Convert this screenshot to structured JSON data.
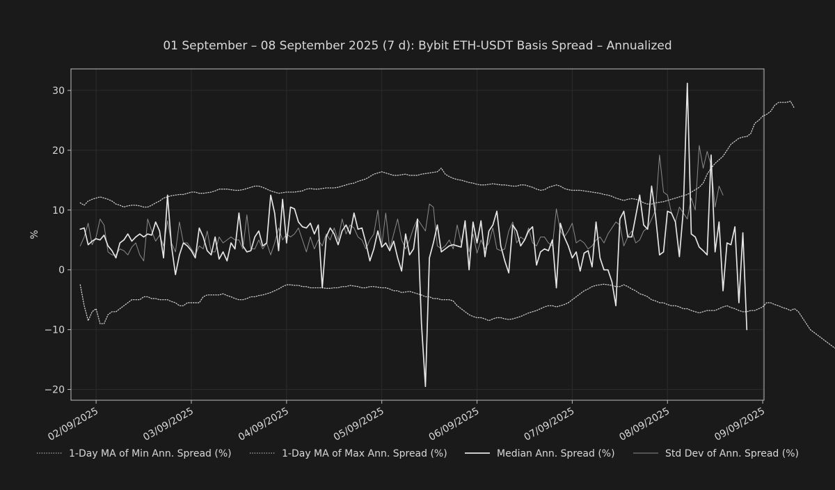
{
  "colors": {
    "background": "#1a1a1a",
    "text": "#d8d8d8",
    "axis": "#bfbfbf",
    "grid": "#2c2c2c",
    "min_ma": "#d0d0d0",
    "max_ma": "#d0d0d0",
    "median": "#e6e6e6",
    "std": "#8c8c8c"
  },
  "chart_data": {
    "type": "line",
    "title": "01 September – 08 September 2025 (7 d): Bybit ETH-USDT Basis Spread – Annualized",
    "xlabel": "",
    "ylabel": "%",
    "x_start": "2025-09-01T20:00",
    "x_step_hours": 1,
    "xlim": [
      "2025-09-01T17:40",
      "2025-09-09T00:20"
    ],
    "ylim": [
      -21.8,
      33.6
    ],
    "x_ticks": [
      "02/09/2025",
      "03/09/2025",
      "04/09/2025",
      "05/09/2025",
      "06/09/2025",
      "07/09/2025",
      "08/09/2025",
      "09/09/2025"
    ],
    "y_ticks": [
      -20,
      -10,
      0,
      10,
      20,
      30
    ],
    "y_tick_labels": [
      "−20",
      "−10",
      "0",
      "10",
      "20",
      "30"
    ],
    "grid": true,
    "legend_position": "bottom",
    "series": [
      {
        "name": "1-Day MA of Min Ann. Spread (%)",
        "style": "dotted",
        "values": [
          -2.5,
          -6.0,
          -8.5,
          -7.0,
          -6.5,
          -9.0,
          -9.0,
          -7.5,
          -7.0,
          -7.0,
          -6.5,
          -6.0,
          -5.5,
          -5.0,
          -5.0,
          -5.0,
          -4.5,
          -4.5,
          -4.8,
          -4.8,
          -5.0,
          -5.0,
          -5.0,
          -5.3,
          -5.5,
          -6.0,
          -6.0,
          -5.5,
          -5.5,
          -5.5,
          -5.5,
          -4.5,
          -4.2,
          -4.2,
          -4.2,
          -4.2,
          -4.0,
          -4.3,
          -4.5,
          -4.8,
          -5.0,
          -5.0,
          -4.8,
          -4.5,
          -4.5,
          -4.3,
          -4.2,
          -4.0,
          -3.8,
          -3.5,
          -3.2,
          -2.8,
          -2.5,
          -2.5,
          -2.6,
          -2.6,
          -2.8,
          -2.8,
          -3.0,
          -3.0,
          -3.0,
          -3.0,
          -3.1,
          -3.1,
          -3.0,
          -3.0,
          -2.8,
          -2.8,
          -2.6,
          -2.7,
          -2.8,
          -3.0,
          -3.0,
          -2.8,
          -2.8,
          -2.9,
          -3.0,
          -3.0,
          -3.2,
          -3.5,
          -3.5,
          -3.8,
          -3.7,
          -3.6,
          -3.8,
          -4.0,
          -4.2,
          -4.5,
          -4.5,
          -4.8,
          -4.8,
          -5.0,
          -5.0,
          -5.0,
          -5.2,
          -6.0,
          -6.5,
          -7.0,
          -7.5,
          -7.8,
          -8.0,
          -8.0,
          -8.2,
          -8.5,
          -8.2,
          -8.0,
          -8.0,
          -8.2,
          -8.3,
          -8.2,
          -8.0,
          -7.8,
          -7.5,
          -7.2,
          -7.0,
          -6.8,
          -6.5,
          -6.2,
          -6.0,
          -6.0,
          -6.2,
          -6.0,
          -5.8,
          -5.5,
          -5.0,
          -4.5,
          -4.0,
          -3.5,
          -3.2,
          -2.8,
          -2.6,
          -2.5,
          -2.4,
          -2.5,
          -2.6,
          -2.8,
          -2.8,
          -2.5,
          -2.8,
          -3.2,
          -3.5,
          -4.0,
          -4.2,
          -4.5,
          -5.0,
          -5.2,
          -5.5,
          -5.5,
          -5.8,
          -6.0,
          -6.0,
          -6.2,
          -6.5,
          -6.5,
          -6.8,
          -7.0,
          -7.2,
          -7.0,
          -6.8,
          -6.8,
          -6.8,
          -6.5,
          -6.2,
          -6.0,
          -6.3,
          -6.5,
          -6.8,
          -7.0,
          -7.0,
          -6.8,
          -6.8,
          -6.5,
          -6.2,
          -5.5,
          -5.5,
          -5.8,
          -6.0,
          -6.3,
          -6.5,
          -6.8,
          -6.5,
          -7.0,
          -8.0,
          -9.0,
          -10.0,
          -10.5,
          -11.0,
          -11.5,
          -12.0,
          -12.5,
          -13.0,
          -13.4
        ]
      },
      {
        "name": "1-Day MA of Max Ann. Spread (%)",
        "style": "dotted",
        "values": [
          11.2,
          10.8,
          11.5,
          11.8,
          12.0,
          12.2,
          12.0,
          11.8,
          11.5,
          11.0,
          10.8,
          10.5,
          10.7,
          10.8,
          10.8,
          10.7,
          10.5,
          10.5,
          10.8,
          11.2,
          11.5,
          12.0,
          12.2,
          12.4,
          12.5,
          12.6,
          12.6,
          12.8,
          13.0,
          13.0,
          12.8,
          12.8,
          12.9,
          13.0,
          13.2,
          13.5,
          13.5,
          13.5,
          13.4,
          13.3,
          13.3,
          13.4,
          13.6,
          13.8,
          14.0,
          14.0,
          13.8,
          13.5,
          13.2,
          13.0,
          12.8,
          12.9,
          13.0,
          13.0,
          13.0,
          13.1,
          13.2,
          13.5,
          13.6,
          13.5,
          13.5,
          13.6,
          13.7,
          13.7,
          13.7,
          13.8,
          14.0,
          14.2,
          14.4,
          14.5,
          14.8,
          15.0,
          15.2,
          15.6,
          16.0,
          16.2,
          16.4,
          16.2,
          16.0,
          15.8,
          15.8,
          15.9,
          16.0,
          15.8,
          15.8,
          15.8,
          16.0,
          16.1,
          16.2,
          16.3,
          16.4,
          17.0,
          16.0,
          15.6,
          15.3,
          15.1,
          15.0,
          14.8,
          14.6,
          14.5,
          14.3,
          14.2,
          14.2,
          14.3,
          14.4,
          14.3,
          14.2,
          14.2,
          14.1,
          14.0,
          14.0,
          14.2,
          14.2,
          14.0,
          13.8,
          13.5,
          13.3,
          13.4,
          13.8,
          14.0,
          14.2,
          14.0,
          13.6,
          13.4,
          13.3,
          13.3,
          13.3,
          13.2,
          13.1,
          13.0,
          12.9,
          12.8,
          12.6,
          12.5,
          12.3,
          12.0,
          11.8,
          11.6,
          11.8,
          11.9,
          11.8,
          11.6,
          11.2,
          11.0,
          11.0,
          11.2,
          11.3,
          11.4,
          11.6,
          11.8,
          12.0,
          12.2,
          12.4,
          12.6,
          13.0,
          13.4,
          13.8,
          14.5,
          16.0,
          17.0,
          17.8,
          18.4,
          19.0,
          20.0,
          21.0,
          21.5,
          22.0,
          22.2,
          22.3,
          22.8,
          24.5,
          25.0,
          25.7,
          26.0,
          26.5,
          27.5,
          28.0,
          28.0,
          28.0,
          28.2,
          27.0
        ]
      },
      {
        "name": "Median Ann. Spread (%)",
        "style": "solid",
        "values": [
          6.8,
          7.0,
          4.2,
          4.8,
          5.2,
          5.0,
          5.8,
          4.0,
          3.2,
          2.0,
          4.5,
          5.0,
          6.0,
          4.8,
          5.5,
          6.0,
          5.5,
          6.0,
          5.8,
          8.0,
          6.5,
          2.0,
          12.5,
          4.0,
          -0.8,
          2.5,
          4.5,
          4.0,
          3.2,
          2.0,
          7.0,
          5.5,
          3.2,
          2.5,
          5.5,
          1.8,
          3.0,
          1.5,
          4.5,
          3.5,
          9.5,
          4.0,
          3.0,
          3.2,
          5.5,
          6.5,
          4.0,
          4.5,
          12.5,
          9.5,
          3.2,
          11.8,
          4.5,
          10.5,
          10.2,
          8.0,
          7.2,
          7.0,
          7.8,
          6.0,
          7.5,
          -3.0,
          5.5,
          7.0,
          6.0,
          4.2,
          6.5,
          7.5,
          6.0,
          9.5,
          6.8,
          7.0,
          4.5,
          1.5,
          3.5,
          6.5,
          3.8,
          4.5,
          3.2,
          4.8,
          2.0,
          -0.2,
          6.0,
          2.5,
          3.5,
          8.5,
          -9.0,
          -19.5,
          2.0,
          4.5,
          7.5,
          3.0,
          3.5,
          4.0,
          4.2,
          4.0,
          3.8,
          8.2,
          0.0,
          8.0,
          4.5,
          8.2,
          2.2,
          6.5,
          7.5,
          9.8,
          4.0,
          1.5,
          -0.5,
          7.5,
          6.5,
          4.0,
          5.0,
          6.5,
          7.2,
          0.8,
          3.0,
          3.5,
          3.2,
          5.0,
          -3.0,
          7.8,
          5.5,
          4.0,
          2.0,
          3.0,
          -0.2,
          2.8,
          3.2,
          0.5,
          8.0,
          2.0,
          0.0,
          0.0,
          -2.0,
          -6.0,
          8.5,
          9.8,
          5.5,
          5.5,
          9.0,
          12.5,
          7.5,
          6.8,
          14.0,
          9.0,
          2.5,
          3.0,
          9.8,
          9.5,
          8.0,
          2.2,
          10.0,
          31.2,
          6.0,
          5.5,
          3.8,
          3.2,
          2.5,
          19.2,
          3.0,
          8.0,
          -3.5,
          4.5,
          4.2,
          7.2,
          -5.5,
          6.2,
          -10.0
        ]
      },
      {
        "name": "Std Dev of Ann. Spread (%)",
        "style": "solid",
        "values": [
          4.0,
          5.5,
          7.8,
          4.2,
          5.5,
          8.5,
          7.5,
          3.0,
          2.5,
          2.5,
          3.5,
          3.2,
          2.5,
          3.8,
          4.5,
          2.5,
          1.5,
          8.5,
          6.5,
          4.8,
          5.8,
          4.0,
          8.2,
          4.5,
          3.0,
          8.0,
          4.5,
          4.5,
          3.5,
          2.5,
          4.0,
          3.5,
          6.5,
          3.0,
          3.0,
          5.5,
          4.5,
          5.0,
          5.5,
          5.0,
          5.0,
          3.5,
          9.2,
          3.5,
          3.5,
          5.0,
          3.5,
          4.5,
          2.5,
          4.5,
          7.0,
          5.0,
          6.0,
          5.5,
          6.0,
          7.0,
          5.0,
          3.0,
          5.5,
          3.5,
          5.0,
          4.0,
          6.0,
          5.0,
          7.0,
          5.0,
          8.5,
          6.0,
          7.5,
          7.0,
          5.5,
          5.0,
          3.5,
          5.0,
          6.0,
          10.0,
          4.0,
          9.5,
          3.5,
          6.0,
          8.5,
          5.0,
          3.5,
          5.0,
          7.0,
          8.5,
          7.5,
          6.5,
          11.0,
          10.5,
          4.0,
          3.5,
          4.0,
          5.0,
          3.5,
          7.5,
          4.5,
          8.0,
          3.0,
          6.0,
          2.8,
          5.0,
          3.5,
          4.5,
          7.0,
          3.5,
          3.2,
          3.5,
          6.5,
          8.0,
          4.5,
          5.5,
          5.0,
          7.0,
          4.5,
          4.0,
          5.5,
          5.5,
          4.5,
          4.0,
          10.2,
          6.5,
          5.5,
          6.5,
          7.8,
          4.5,
          5.0,
          4.5,
          3.5,
          4.0,
          5.0,
          5.5,
          4.5,
          6.0,
          7.0,
          8.0,
          7.5,
          4.0,
          5.5,
          6.5,
          4.5,
          5.0,
          6.5,
          7.0,
          8.5,
          10.0,
          19.2,
          13.0,
          12.5,
          9.5,
          8.0,
          10.5,
          9.5,
          8.5,
          12.0,
          10.0,
          20.8,
          17.0,
          19.8,
          17.5,
          10.5,
          14.0,
          12.5
        ]
      }
    ]
  }
}
